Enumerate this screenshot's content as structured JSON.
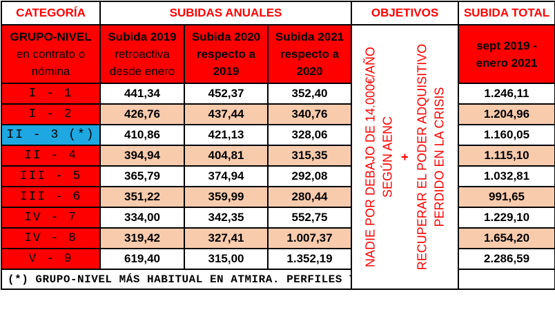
{
  "headers": {
    "categoria": "CATEGORÍA",
    "subidas_anuales": "SUBIDAS ANUALES",
    "objetivos": "OBJETIVOS",
    "subida_total": "SUBIDA TOTAL"
  },
  "subheaders": {
    "grupo_line1": "GRUPO-NIVEL",
    "grupo_line2": "en contrato o",
    "grupo_line3": "nómina",
    "s2019_line1": "Subida 2019",
    "s2019_line2": "retroactiva",
    "s2019_line3": "desde enero",
    "s2020_line1": "Subida 2020",
    "s2020_line2": "respecto a",
    "s2020_line3": "2019",
    "s2021_line1": "Subida 2021",
    "s2021_line2": "respecto a",
    "s2021_line3": "2020",
    "total_line1": "sept 2019 -",
    "total_line2": "enero 2021"
  },
  "objetivos": {
    "line1": "NADIE POR DEBAJO DE 14.000€/AÑO",
    "line2": "SEGÚN AENC",
    "plus": "+",
    "line3": "RECUPERAR EL PODER ADQUISITIVO",
    "line4": "PERDIDO EN LA CRISIS"
  },
  "rows": [
    {
      "cat": "I - 1",
      "s2019": "441,34",
      "s2020": "452,37",
      "s2021": "352,40",
      "total": "1.246,11",
      "highlight": false
    },
    {
      "cat": "I - 2",
      "s2019": "426,76",
      "s2020": "437,44",
      "s2021": "340,76",
      "total": "1.204,96",
      "highlight": false
    },
    {
      "cat": "II - 3 (*)",
      "s2019": "410,86",
      "s2020": "421,13",
      "s2021": "328,06",
      "total": "1.160,05",
      "highlight": true
    },
    {
      "cat": "II - 4",
      "s2019": "394,94",
      "s2020": "404,81",
      "s2021": "315,35",
      "total": "1.115,10",
      "highlight": false
    },
    {
      "cat": "III - 5",
      "s2019": "365,79",
      "s2020": "374,94",
      "s2021": "292,08",
      "total": "1.032,81",
      "highlight": false
    },
    {
      "cat": "III - 6",
      "s2019": "351,22",
      "s2020": "359,99",
      "s2021": "280,44",
      "total": "991,65",
      "highlight": false
    },
    {
      "cat": "IV - 7",
      "s2019": "334,00",
      "s2020": "342,35",
      "s2021": "552,75",
      "total": "1.229,10",
      "highlight": false
    },
    {
      "cat": "IV - 8",
      "s2019": "319,42",
      "s2020": "327,41",
      "s2021": "1.007,37",
      "total": "1.654,20",
      "highlight": false
    },
    {
      "cat": "V - 9",
      "s2019": "619,40",
      "s2020": "315,00",
      "s2021": "1.352,19",
      "total": "2.286,59",
      "highlight": false
    }
  ],
  "footnote": "(*) GRUPO-NIVEL MÁS HABITUAL EN ATMIRA. PERFILES TÉCNICOS",
  "colors": {
    "red": "#ff0000",
    "peach": "#f8cbad",
    "blue": "#1ea7e1"
  }
}
